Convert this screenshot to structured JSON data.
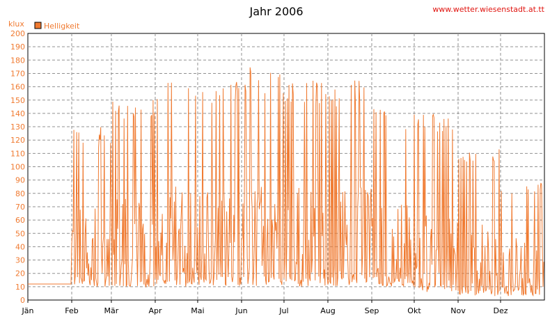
{
  "chart_data": {
    "type": "line",
    "title": "Jahr 2006",
    "ylabel": "klux",
    "ylim": [
      0,
      200
    ],
    "yticks": [
      0,
      10,
      20,
      30,
      40,
      50,
      60,
      70,
      80,
      90,
      100,
      110,
      120,
      130,
      140,
      150,
      160,
      170,
      180,
      190,
      200
    ],
    "x_range_days": [
      0,
      365
    ],
    "xticks": [
      {
        "label": "Jän",
        "day": 0
      },
      {
        "label": "Feb",
        "day": 31
      },
      {
        "label": "Mär",
        "day": 59
      },
      {
        "label": "Apr",
        "day": 90
      },
      {
        "label": "Mai",
        "day": 120
      },
      {
        "label": "Jun",
        "day": 151
      },
      {
        "label": "Jul",
        "day": 181
      },
      {
        "label": "Aug",
        "day": 212
      },
      {
        "label": "Sep",
        "day": 243
      },
      {
        "label": "Okt",
        "day": 273
      },
      {
        "label": "Nov",
        "day": 304
      },
      {
        "label": "Dez",
        "day": 334
      }
    ],
    "grid": true,
    "legend_position": "top-left",
    "series": [
      {
        "name": "Helligkeit",
        "color": "#f07a30",
        "approx_monthly_peak_range": [
          {
            "month": "Jän",
            "min": 12,
            "max": 12
          },
          {
            "month": "Feb",
            "min": 10,
            "max": 130
          },
          {
            "month": "Mär",
            "min": 10,
            "max": 150
          },
          {
            "month": "Apr",
            "min": 10,
            "max": 165
          },
          {
            "month": "Mai",
            "min": 10,
            "max": 165
          },
          {
            "month": "Jun",
            "min": 10,
            "max": 175
          },
          {
            "month": "Jul",
            "min": 10,
            "max": 165
          },
          {
            "month": "Aug",
            "min": 10,
            "max": 165
          },
          {
            "month": "Sep",
            "min": 10,
            "max": 145
          },
          {
            "month": "Okt",
            "min": 5,
            "max": 140
          },
          {
            "month": "Nov",
            "min": 3,
            "max": 115
          },
          {
            "month": "Dez",
            "min": 3,
            "max": 90
          }
        ]
      }
    ]
  },
  "watermark": "www.wetter.wiesenstadt.at.tt"
}
